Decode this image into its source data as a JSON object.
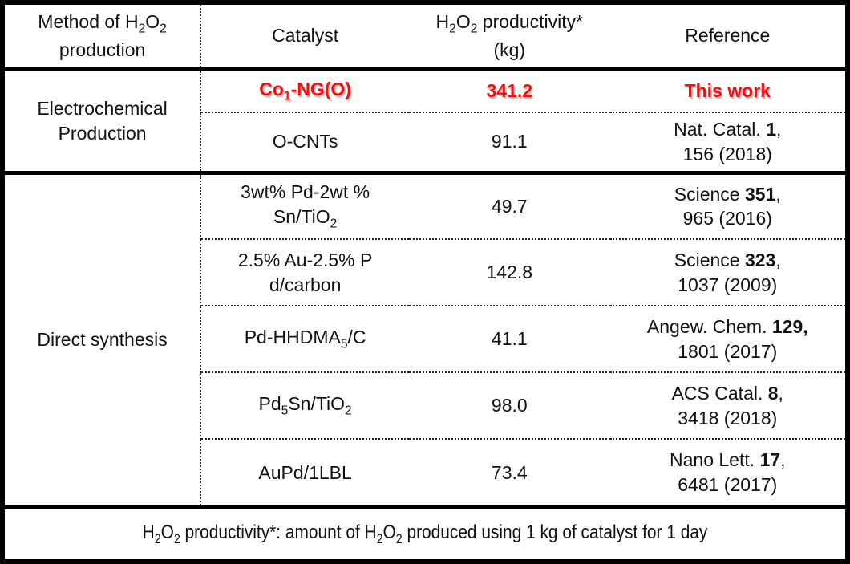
{
  "accent_color": "#ee1111",
  "header": {
    "method": "Method of H~2~O~2~\nproduction",
    "catalyst": "Catalyst",
    "productivity": "H~2~O~2~ productivity*\n(kg)",
    "reference": "Reference"
  },
  "rows": [
    {
      "method": "Electrochemical\nProduction",
      "method_rowspan": 2,
      "catalyst": "Co~1~-NG(O)",
      "value": "341.2",
      "reference": "This work",
      "highlight": true
    },
    {
      "catalyst": "O-CNTs",
      "value": "91.1",
      "reference": "Nat. Catal. **1**,\n156 (2018)"
    },
    {
      "method": "Direct synthesis",
      "method_rowspan": 5,
      "catalyst": "3wt% Pd-2wt %\nSn/TiO~2~",
      "value": "49.7",
      "reference": "Science **351**,\n965 (2016)"
    },
    {
      "catalyst": "2.5% Au-2.5% P\nd/carbon",
      "value": "142.8",
      "reference": "Science **323**,\n1037 (2009)"
    },
    {
      "catalyst": "Pd-HHDMA~5~/C",
      "value": "41.1",
      "reference": "Angew. Chem. **129,**\n1801 (2017)"
    },
    {
      "catalyst": "Pd~5~Sn/TiO~2~",
      "value": "98.0",
      "reference": "ACS Catal. **8**,\n3418 (2018)"
    },
    {
      "catalyst": "AuPd/1LBL",
      "value": "73.4",
      "reference": "Nano Lett. **17**,\n6481 (2017)"
    }
  ],
  "footnote": "H~2~O~2~ productivity*: amount of H~2~O~2~ produced using 1 kg of catalyst for 1 day"
}
